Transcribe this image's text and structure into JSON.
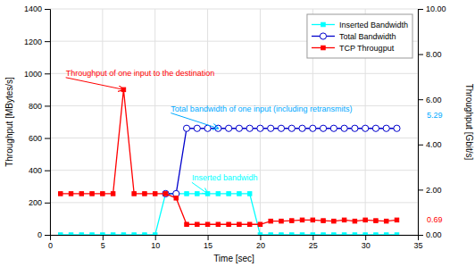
{
  "chart_data": {
    "type": "line",
    "xlabel": "Time [sec]",
    "ylabel": "Throughput [MBytes/s]",
    "y2label": "Throughput [Gbit/s]",
    "xlim": [
      0,
      35
    ],
    "ylim": [
      0,
      1400
    ],
    "y2lim": [
      0,
      10
    ],
    "xticks": [
      0,
      5,
      10,
      15,
      20,
      25,
      30,
      35
    ],
    "yticks": [
      0,
      200,
      400,
      600,
      800,
      1000,
      1200,
      1400
    ],
    "y2ticks": [
      {
        "value": 0,
        "label": "0.00"
      },
      {
        "value": 2,
        "label": "2.00"
      },
      {
        "value": 4,
        "label": "4.00"
      },
      {
        "value": 6,
        "label": "6.00"
      },
      {
        "value": 8,
        "label": "8.00"
      },
      {
        "value": 10,
        "label": "10.00"
      }
    ],
    "grid": true,
    "legend": "upper right",
    "series": [
      {
        "name": "Inserted Bandwidth",
        "color": "#00ffff",
        "marker": "square",
        "x": [
          1,
          2,
          3,
          4,
          5,
          6,
          7,
          8,
          9,
          10,
          11,
          12,
          13,
          14,
          15,
          16,
          17,
          18,
          19,
          20,
          21,
          22,
          23,
          24,
          25,
          26,
          27,
          28,
          29,
          30,
          31,
          32,
          33
        ],
        "values": [
          0,
          0,
          0,
          0,
          0,
          0,
          0,
          0,
          0,
          0,
          255,
          255,
          255,
          255,
          255,
          255,
          255,
          255,
          255,
          0,
          0,
          0,
          0,
          0,
          0,
          0,
          0,
          0,
          0,
          0,
          0,
          0,
          0
        ]
      },
      {
        "name": "Total Bandwidth",
        "color": "#0000cc",
        "marker": "open-circle",
        "x": [
          11,
          12,
          13,
          14,
          15,
          16,
          17,
          18,
          19,
          20,
          21,
          22,
          23,
          24,
          25,
          26,
          27,
          28,
          29,
          30,
          31,
          32,
          33
        ],
        "values": [
          255,
          255,
          660,
          660,
          660,
          660,
          660,
          660,
          660,
          660,
          660,
          660,
          660,
          660,
          660,
          660,
          660,
          660,
          660,
          660,
          660,
          660,
          660
        ]
      },
      {
        "name": "TCP Througput",
        "color": "#ff0000",
        "marker": "square",
        "x": [
          1,
          2,
          3,
          4,
          5,
          6,
          7,
          8,
          9,
          10,
          11,
          12,
          13,
          14,
          15,
          16,
          17,
          18,
          19,
          20,
          21,
          22,
          23,
          24,
          25,
          26,
          27,
          28,
          29,
          30,
          31,
          32,
          33
        ],
        "values": [
          255,
          255,
          255,
          255,
          255,
          255,
          900,
          255,
          255,
          255,
          255,
          228,
          65,
          65,
          65,
          65,
          65,
          65,
          65,
          65,
          85,
          85,
          88,
          92,
          92,
          88,
          85,
          92,
          85,
          92,
          88,
          85,
          92
        ]
      }
    ],
    "annotations": [
      {
        "text": "Throughput of one input to the destination",
        "x": 7,
        "y": 900,
        "text_x": 1.5,
        "text_y": 975,
        "color": "#ff0000"
      },
      {
        "text": "Total bandwidth of one input (including retransmits)",
        "x": 16,
        "y": 660,
        "text_x": 11.5,
        "text_y": 755,
        "color": "#00aaff"
      },
      {
        "text": "Inserted bandwidh",
        "x": 15,
        "y": 255,
        "text_x": 13.5,
        "text_y": 325,
        "color": "#00ffff"
      },
      {
        "text": "5.29",
        "y": 5.29,
        "axis": "y2",
        "color": "#00aaff"
      },
      {
        "text": "0.69",
        "y": 0.69,
        "axis": "y2",
        "color": "#ff0000"
      }
    ]
  }
}
